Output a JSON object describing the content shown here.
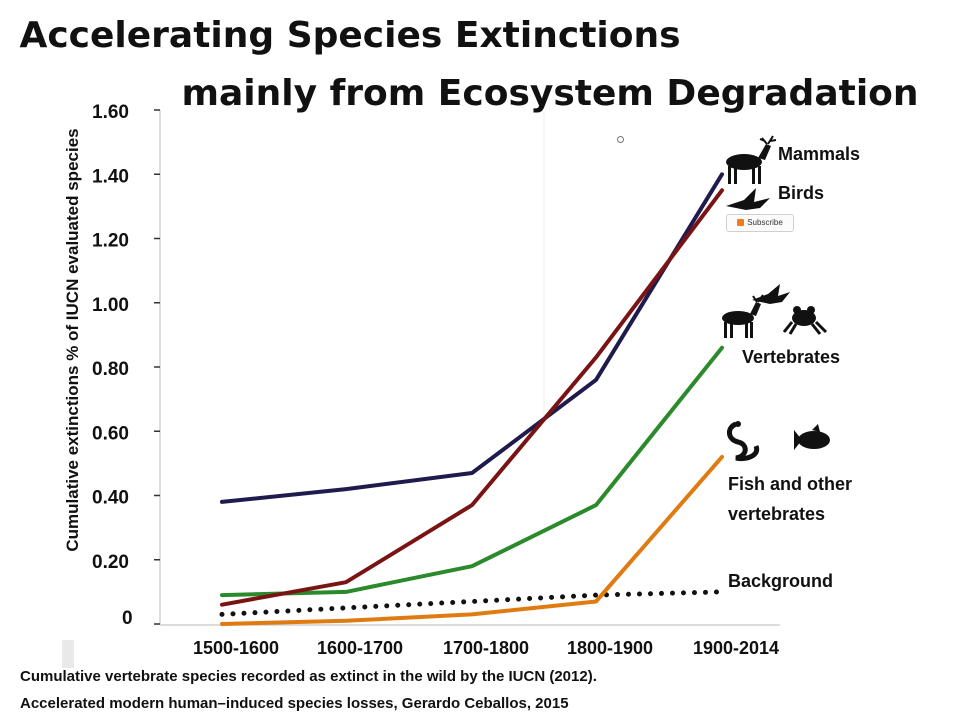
{
  "title_line1": "Accelerating Species Extinctions",
  "title_line2": "mainly from Ecosystem Degradation",
  "footnote1": "Cumulative vertebrate species recorded as extinct in the wild by the IUCN (2012).",
  "footnote2": "Accelerated modern human–induced species losses, Gerardo Ceballos, 2015",
  "subscribe_label": "Subscribe",
  "chart_data": {
    "type": "line",
    "ylabel": "Cumulative extinctions % of IUCN evaluated species",
    "xlabel": "",
    "categories": [
      "1500-1600",
      "1600-1700",
      "1700-1800",
      "1800-1900",
      "1900-2014"
    ],
    "ylim": [
      0,
      1.6
    ],
    "yticks": [
      "0",
      "0.20",
      "0.40",
      "0.60",
      "0.80",
      "1.00",
      "1.20",
      "1.40",
      "1.60"
    ],
    "grid": false,
    "series": [
      {
        "name": "Mammals",
        "color": "#1f1b4d",
        "style": "solid",
        "values": [
          0.38,
          0.42,
          0.47,
          0.76,
          1.4
        ]
      },
      {
        "name": "Birds",
        "color": "#7a1414",
        "style": "solid",
        "values": [
          0.06,
          0.13,
          0.37,
          0.83,
          1.35
        ]
      },
      {
        "name": "Vertebrates",
        "color": "#2b8a2b",
        "style": "solid",
        "values": [
          0.09,
          0.1,
          0.18,
          0.37,
          0.86
        ]
      },
      {
        "name": "Fish and other vertebrates",
        "color": "#e07b12",
        "style": "solid",
        "values": [
          0.0,
          0.01,
          0.03,
          0.07,
          0.52
        ]
      },
      {
        "name": "Background",
        "color": "#111111",
        "style": "dotted",
        "values": [
          0.03,
          0.05,
          0.07,
          0.09,
          0.1
        ]
      }
    ],
    "labels": [
      {
        "text": "Mammals",
        "series": "Mammals"
      },
      {
        "text": "Birds",
        "series": "Birds"
      },
      {
        "text": "Vertebrates",
        "series": "Vertebrates"
      },
      {
        "text": "Fish and other",
        "series": "Fish and other vertebrates"
      },
      {
        "text": "vertebrates",
        "series": "Fish and other vertebrates"
      },
      {
        "text": "Background",
        "series": "Background"
      }
    ],
    "icons": [
      "deer-icon",
      "bird-icon",
      "deer-icon",
      "bird-icon",
      "frog-icon",
      "snake-icon",
      "fish-icon"
    ]
  }
}
